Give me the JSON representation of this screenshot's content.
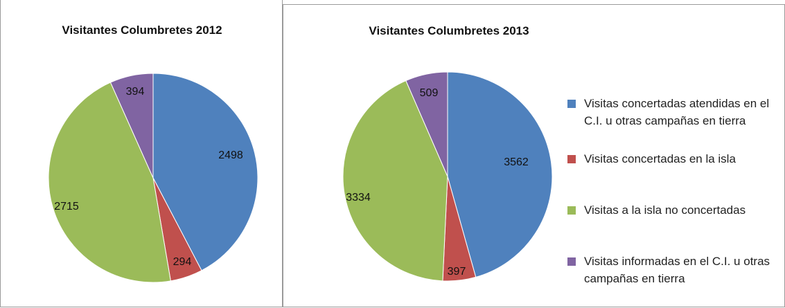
{
  "chart_data": [
    {
      "type": "pie",
      "title": "Visitantes Columbretes 2012",
      "categories": [
        "Visitas concertadas atendidas en el C.I. u otras campañas en tierra",
        "Visitas concertadas en la isla",
        "Visitas a la isla no concertadas",
        "Visitas informadas en el C.I. u otras campañas en tierra"
      ],
      "values": [
        2498,
        294,
        2715,
        394
      ],
      "labels": [
        "2498",
        "294",
        "2715",
        "394"
      ],
      "colors": [
        "#4f81bd",
        "#c0504d",
        "#9bbb59",
        "#8064a2"
      ],
      "legend": "none"
    },
    {
      "type": "pie",
      "title": "Visitantes Columbretes 2013",
      "categories": [
        "Visitas concertadas atendidas en el C.I. u otras campañas en tierra",
        "Visitas concertadas en la isla",
        "Visitas a la isla no concertadas",
        "Visitas informadas en el C.I. u otras campañas en tierra"
      ],
      "values": [
        3562,
        397,
        3334,
        509
      ],
      "labels": [
        "3562",
        "397",
        "3334",
        "509"
      ],
      "colors": [
        "#4f81bd",
        "#c0504d",
        "#9bbb59",
        "#8064a2"
      ],
      "legend": "right"
    }
  ],
  "legend": {
    "items": [
      {
        "label": "Visitas concertadas atendidas en el C.I. u otras campañas en tierra",
        "color": "#4f81bd"
      },
      {
        "label": "Visitas concertadas en la isla",
        "color": "#c0504d"
      },
      {
        "label": "Visitas a la isla no concertadas",
        "color": "#9bbb59"
      },
      {
        "label": "Visitas informadas en el C.I. u otras campañas en tierra",
        "color": "#8064a2"
      }
    ]
  }
}
